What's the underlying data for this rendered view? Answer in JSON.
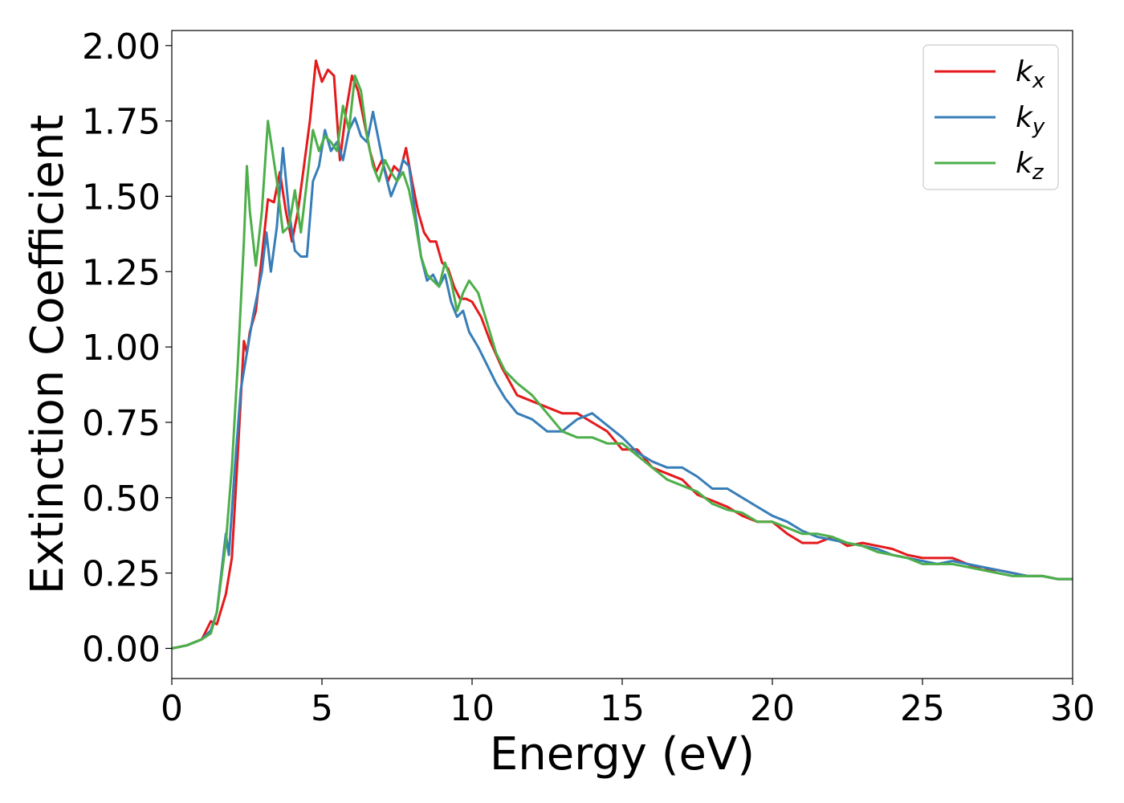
{
  "chart_data": {
    "type": "line",
    "xlabel": "Energy (eV)",
    "ylabel": "Extinction Coefficient",
    "xlim": [
      0,
      30
    ],
    "ylim": [
      -0.1,
      2.05
    ],
    "xticks": [
      0,
      5,
      10,
      15,
      20,
      25,
      30
    ],
    "xtick_labels": [
      "0",
      "5",
      "10",
      "15",
      "20",
      "25",
      "30"
    ],
    "yticks": [
      0.0,
      0.25,
      0.5,
      0.75,
      1.0,
      1.25,
      1.5,
      1.75,
      2.0
    ],
    "ytick_labels": [
      "0.00",
      "0.25",
      "0.50",
      "0.75",
      "1.00",
      "1.25",
      "1.50",
      "1.75",
      "2.00"
    ],
    "grid": false,
    "legend_position": "top-right",
    "series": [
      {
        "name": "k",
        "subscript": "x",
        "color": "#e41a1c",
        "x": [
          0,
          0.5,
          1,
          1.3,
          1.5,
          1.8,
          2.0,
          2.2,
          2.4,
          2.5,
          2.6,
          2.8,
          3.0,
          3.2,
          3.4,
          3.6,
          3.8,
          4.0,
          4.2,
          4.4,
          4.6,
          4.8,
          5.0,
          5.2,
          5.4,
          5.6,
          5.8,
          6.0,
          6.2,
          6.4,
          6.6,
          6.8,
          7.0,
          7.2,
          7.4,
          7.6,
          7.8,
          8.0,
          8.2,
          8.4,
          8.6,
          8.8,
          9.0,
          9.2,
          9.4,
          9.6,
          9.8,
          10.0,
          10.3,
          10.6,
          11.0,
          11.5,
          12.0,
          12.5,
          13.0,
          13.5,
          14.0,
          14.5,
          15.0,
          15.5,
          16.0,
          16.5,
          17.0,
          17.5,
          18.0,
          18.5,
          19.0,
          19.5,
          20.0,
          20.5,
          21.0,
          21.5,
          22.0,
          22.5,
          23.0,
          23.5,
          24.0,
          24.5,
          25.0,
          25.5,
          26.0,
          26.5,
          27.0,
          27.5,
          28.0,
          28.5,
          29.0,
          29.5,
          30.0
        ],
        "y": [
          0.0,
          0.01,
          0.03,
          0.09,
          0.08,
          0.18,
          0.3,
          0.65,
          1.02,
          0.98,
          1.05,
          1.12,
          1.3,
          1.49,
          1.48,
          1.58,
          1.45,
          1.35,
          1.45,
          1.6,
          1.75,
          1.95,
          1.88,
          1.92,
          1.9,
          1.62,
          1.78,
          1.9,
          1.85,
          1.75,
          1.65,
          1.58,
          1.62,
          1.55,
          1.6,
          1.58,
          1.66,
          1.55,
          1.45,
          1.38,
          1.35,
          1.35,
          1.28,
          1.26,
          1.2,
          1.16,
          1.16,
          1.15,
          1.1,
          1.02,
          0.93,
          0.84,
          0.82,
          0.8,
          0.78,
          0.78,
          0.75,
          0.72,
          0.66,
          0.66,
          0.6,
          0.58,
          0.56,
          0.51,
          0.49,
          0.47,
          0.44,
          0.42,
          0.42,
          0.38,
          0.35,
          0.35,
          0.37,
          0.34,
          0.35,
          0.34,
          0.33,
          0.31,
          0.3,
          0.3,
          0.3,
          0.28,
          0.26,
          0.26,
          0.25,
          0.24,
          0.24,
          0.23,
          0.23
        ]
      },
      {
        "name": "k",
        "subscript": "y",
        "color": "#377eb8",
        "x": [
          0,
          0.5,
          1,
          1.3,
          1.5,
          1.8,
          1.9,
          2.1,
          2.3,
          2.5,
          2.7,
          2.9,
          3.0,
          3.15,
          3.3,
          3.5,
          3.7,
          3.9,
          4.1,
          4.3,
          4.5,
          4.7,
          4.9,
          5.1,
          5.3,
          5.5,
          5.7,
          5.9,
          6.1,
          6.3,
          6.5,
          6.7,
          6.9,
          7.1,
          7.3,
          7.5,
          7.7,
          7.9,
          8.1,
          8.3,
          8.5,
          8.7,
          8.9,
          9.1,
          9.3,
          9.5,
          9.7,
          9.9,
          10.2,
          10.5,
          10.8,
          11.1,
          11.5,
          12.0,
          12.5,
          13.0,
          13.5,
          14.0,
          14.5,
          15.0,
          15.5,
          16.0,
          16.5,
          17.0,
          17.5,
          18.0,
          18.5,
          19.0,
          19.5,
          20.0,
          20.5,
          21.0,
          21.5,
          22.0,
          22.5,
          23.0,
          23.5,
          24.0,
          24.5,
          25.0,
          25.5,
          26.0,
          26.5,
          27.0,
          27.5,
          28.0,
          28.5,
          29.0,
          29.5,
          30.0
        ],
        "y": [
          0.0,
          0.01,
          0.03,
          0.06,
          0.12,
          0.38,
          0.31,
          0.6,
          0.86,
          0.98,
          1.1,
          1.2,
          1.25,
          1.38,
          1.25,
          1.4,
          1.66,
          1.45,
          1.32,
          1.3,
          1.3,
          1.55,
          1.6,
          1.72,
          1.65,
          1.68,
          1.62,
          1.72,
          1.76,
          1.7,
          1.68,
          1.78,
          1.68,
          1.58,
          1.5,
          1.55,
          1.62,
          1.6,
          1.45,
          1.3,
          1.22,
          1.24,
          1.2,
          1.24,
          1.15,
          1.1,
          1.12,
          1.05,
          1.0,
          0.94,
          0.88,
          0.83,
          0.78,
          0.76,
          0.72,
          0.72,
          0.76,
          0.78,
          0.74,
          0.7,
          0.65,
          0.62,
          0.6,
          0.6,
          0.57,
          0.53,
          0.53,
          0.5,
          0.47,
          0.44,
          0.42,
          0.39,
          0.37,
          0.36,
          0.35,
          0.34,
          0.33,
          0.31,
          0.3,
          0.29,
          0.28,
          0.29,
          0.28,
          0.27,
          0.26,
          0.25,
          0.24,
          0.24,
          0.23,
          0.23
        ]
      },
      {
        "name": "k",
        "subscript": "z",
        "color": "#4daf4a",
        "x": [
          0,
          0.5,
          1,
          1.3,
          1.5,
          1.8,
          2.0,
          2.2,
          2.4,
          2.5,
          2.6,
          2.8,
          3.0,
          3.2,
          3.35,
          3.5,
          3.7,
          3.9,
          4.1,
          4.3,
          4.5,
          4.7,
          4.9,
          5.1,
          5.3,
          5.5,
          5.7,
          5.9,
          6.1,
          6.3,
          6.5,
          6.7,
          6.9,
          7.1,
          7.3,
          7.5,
          7.7,
          7.9,
          8.1,
          8.3,
          8.5,
          8.7,
          8.9,
          9.1,
          9.3,
          9.5,
          9.7,
          9.9,
          10.2,
          10.5,
          10.8,
          11.1,
          11.5,
          12.0,
          12.5,
          13.0,
          13.5,
          14.0,
          14.5,
          15.0,
          15.5,
          16.0,
          16.5,
          17.0,
          17.5,
          18.0,
          18.5,
          19.0,
          19.5,
          20.0,
          20.5,
          21.0,
          21.5,
          22.0,
          22.5,
          23.0,
          23.5,
          24.0,
          24.5,
          25.0,
          25.5,
          26.0,
          26.5,
          27.0,
          27.5,
          28.0,
          28.5,
          29.0,
          29.5,
          30.0
        ],
        "y": [
          0.0,
          0.01,
          0.03,
          0.05,
          0.12,
          0.35,
          0.6,
          0.95,
          1.35,
          1.6,
          1.45,
          1.27,
          1.45,
          1.75,
          1.65,
          1.55,
          1.38,
          1.4,
          1.52,
          1.38,
          1.55,
          1.72,
          1.65,
          1.7,
          1.68,
          1.65,
          1.8,
          1.72,
          1.9,
          1.85,
          1.7,
          1.6,
          1.55,
          1.62,
          1.58,
          1.55,
          1.58,
          1.52,
          1.42,
          1.3,
          1.24,
          1.22,
          1.2,
          1.28,
          1.22,
          1.12,
          1.18,
          1.22,
          1.18,
          1.08,
          0.98,
          0.92,
          0.88,
          0.84,
          0.78,
          0.72,
          0.7,
          0.7,
          0.68,
          0.68,
          0.64,
          0.6,
          0.56,
          0.54,
          0.52,
          0.48,
          0.46,
          0.45,
          0.42,
          0.42,
          0.4,
          0.38,
          0.38,
          0.37,
          0.35,
          0.34,
          0.32,
          0.31,
          0.3,
          0.28,
          0.28,
          0.28,
          0.27,
          0.26,
          0.25,
          0.24,
          0.24,
          0.24,
          0.23,
          0.23
        ]
      }
    ]
  }
}
